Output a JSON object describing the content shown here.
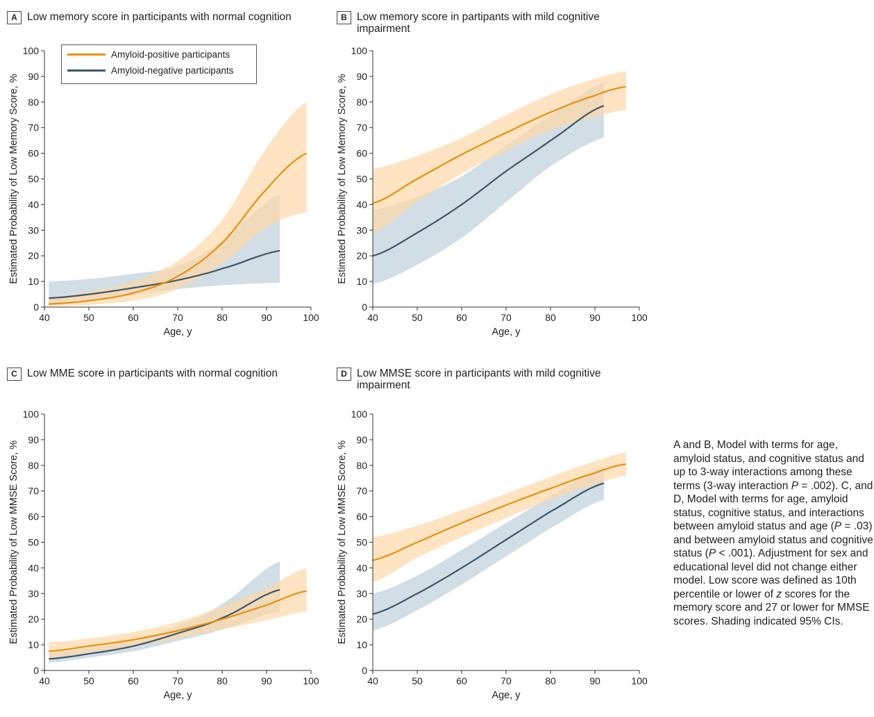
{
  "colors": {
    "positive_line": "#E8900C",
    "positive_band": "#FDD9A8",
    "negative_line": "#3D5666",
    "negative_band": "#B2C8D4",
    "axis": "#333333"
  },
  "legend": {
    "positive": "Amyloid-positive participants",
    "negative": "Amyloid-negative participants"
  },
  "caption": "A and B, Model with terms for age, amyloid status, and cognitive status and up to 3-way interactions among these terms (3-way interaction P = .002). C, and D, Model with terms for age, amyloid status, cognitive status, and interactions between amyloid status and age (P = .03) and between amyloid status and cognitive status (P < .001). Adjustment for sex and educational level did not change either model. Low score was defined as 10th percentile or lower of z scores for the memory score and 27 or lower for MMSE scores. Shading indicated 95% CIs.",
  "chart_data": [
    {
      "type": "line",
      "panel": "A",
      "title": "Low memory score in participants with normal cognition",
      "xlabel": "Age, y",
      "ylabel": "Estimated Probability of Low Memory Score, %",
      "xlim": [
        40,
        100
      ],
      "ylim": [
        0,
        100
      ],
      "xticks": [
        40,
        50,
        60,
        70,
        80,
        90,
        100
      ],
      "yticks": [
        0,
        10,
        20,
        30,
        40,
        50,
        60,
        70,
        80,
        90,
        100
      ],
      "legend_position": "top-left",
      "series": [
        {
          "name": "Amyloid-positive participants",
          "x": [
            41,
            50,
            60,
            70,
            80,
            90,
            99
          ],
          "y": [
            1.2,
            2.5,
            5.5,
            12,
            25,
            46,
            60
          ],
          "lower": [
            0.3,
            0.9,
            2.5,
            7,
            17,
            31,
            37
          ],
          "upper": [
            4,
            6,
            10,
            18,
            34,
            62,
            80
          ]
        },
        {
          "name": "Amyloid-negative participants",
          "x": [
            41,
            50,
            60,
            70,
            80,
            93
          ],
          "y": [
            3.5,
            5,
            7.5,
            10.5,
            15,
            22
          ],
          "lower": [
            1.3,
            2.5,
            4.8,
            7,
            8.5,
            9.5
          ],
          "upper": [
            10,
            11,
            13,
            16,
            26,
            44
          ]
        }
      ]
    },
    {
      "type": "line",
      "panel": "B",
      "title": "Low memory score in partipants with mild cognitive impairment",
      "xlabel": "Age, y",
      "ylabel": "Estimated Probability of Low Memory Score, %",
      "xlim": [
        40,
        100
      ],
      "ylim": [
        0,
        100
      ],
      "xticks": [
        40,
        50,
        60,
        70,
        80,
        90,
        100
      ],
      "yticks": [
        0,
        10,
        20,
        30,
        40,
        50,
        60,
        70,
        80,
        90,
        100
      ],
      "series": [
        {
          "name": "Amyloid-positive participants",
          "x": [
            40,
            50,
            60,
            70,
            80,
            90,
            97
          ],
          "y": [
            40.5,
            50,
            59.5,
            68,
            76,
            82.5,
            86
          ],
          "lower": [
            29,
            41,
            52,
            61,
            69,
            74,
            77
          ],
          "upper": [
            54,
            59,
            66,
            75,
            83,
            89,
            92
          ]
        },
        {
          "name": "Amyloid-negative participants",
          "x": [
            40,
            50,
            60,
            70,
            80,
            92
          ],
          "y": [
            20,
            29,
            40,
            53,
            65,
            78.5
          ],
          "lower": [
            9,
            16.5,
            27,
            41,
            55,
            66
          ],
          "upper": [
            38,
            43,
            51,
            63,
            75,
            87.5
          ]
        }
      ]
    },
    {
      "type": "line",
      "panel": "C",
      "title": "Low MME score in participants with normal cognition",
      "xlabel": "Age, y",
      "ylabel": "Estimated Probability of Low MMSE Score, %",
      "xlim": [
        40,
        100
      ],
      "ylim": [
        0,
        100
      ],
      "xticks": [
        40,
        50,
        60,
        70,
        80,
        90,
        100
      ],
      "yticks": [
        0,
        10,
        20,
        30,
        40,
        50,
        60,
        70,
        80,
        90,
        100
      ],
      "series": [
        {
          "name": "Amyloid-positive participants",
          "x": [
            41,
            50,
            60,
            70,
            80,
            90,
            99
          ],
          "y": [
            7.5,
            9.5,
            12,
            15.5,
            20,
            25.5,
            31
          ],
          "lower": [
            5,
            7,
            9.5,
            12.5,
            16,
            19.5,
            23
          ],
          "upper": [
            11,
            12.5,
            15,
            19,
            25,
            32,
            40
          ]
        },
        {
          "name": "Amyloid-negative participants",
          "x": [
            41,
            50,
            60,
            70,
            80,
            93
          ],
          "y": [
            4.5,
            6.5,
            9.5,
            14.5,
            20.5,
            31.5
          ],
          "lower": [
            3,
            5,
            7.5,
            11.5,
            16,
            23
          ],
          "upper": [
            7,
            8.5,
            12,
            17.5,
            26,
            42.5
          ]
        }
      ]
    },
    {
      "type": "line",
      "panel": "D",
      "title": "Low MMSE score in participants with mild cognitive impairment",
      "xlabel": "Age, y",
      "ylabel": "Estimated Probability of Low MMSE Score, %",
      "xlim": [
        40,
        100
      ],
      "ylim": [
        0,
        100
      ],
      "xticks": [
        40,
        50,
        60,
        70,
        80,
        90,
        100
      ],
      "yticks": [
        0,
        10,
        20,
        30,
        40,
        50,
        60,
        70,
        80,
        90,
        100
      ],
      "series": [
        {
          "name": "Amyloid-positive participants",
          "x": [
            40,
            50,
            60,
            70,
            80,
            90,
            97
          ],
          "y": [
            43,
            50,
            57.5,
            64.5,
            71,
            77,
            80.5
          ],
          "lower": [
            34.5,
            44,
            52,
            59.5,
            66.5,
            72.5,
            76
          ],
          "upper": [
            52,
            56.5,
            62.5,
            69,
            75.5,
            81.5,
            85
          ]
        },
        {
          "name": "Amyloid-negative participants",
          "x": [
            40,
            50,
            60,
            70,
            80,
            92
          ],
          "y": [
            22,
            30,
            40,
            51,
            62,
            73
          ],
          "lower": [
            15.5,
            23.5,
            33.5,
            44.5,
            55.5,
            66.5
          ],
          "upper": [
            30,
            37,
            47,
            57.5,
            68,
            79.5
          ]
        }
      ]
    }
  ]
}
